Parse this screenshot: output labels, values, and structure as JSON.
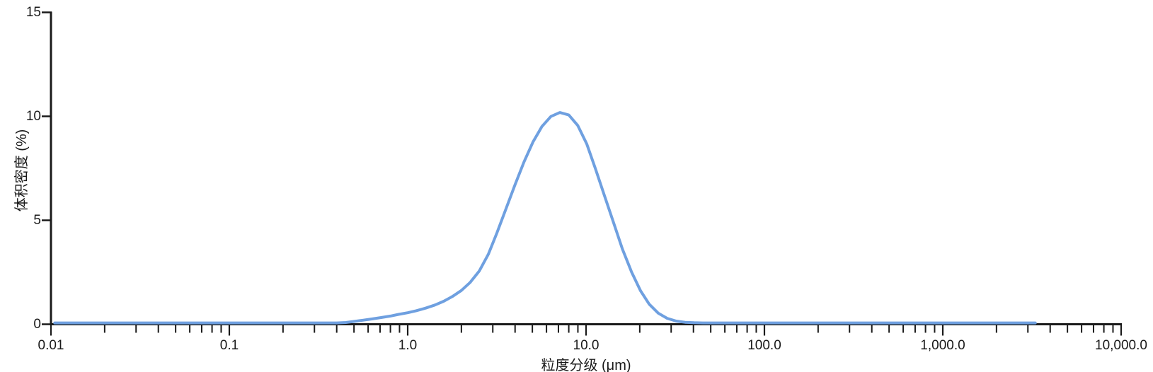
{
  "colors": {
    "axis": "#1a1a1a",
    "text": "#1a1a1a",
    "curve": "#6FA0E0",
    "background": "#ffffff"
  },
  "chart_data": {
    "type": "line",
    "title": "",
    "xlabel": "粒度分级 (μm)",
    "ylabel": "体积密度 (%)",
    "x_scale": "log",
    "x_domain": [
      0.01,
      10000
    ],
    "ylim": [
      0,
      15
    ],
    "grid": false,
    "legend": "none",
    "x_tick_values": [
      0.01,
      0.1,
      1,
      10,
      100,
      1000,
      10000
    ],
    "x_tick_labels": [
      "0.01",
      "0.1",
      "1.0",
      "10.0",
      "100.0",
      "1,000.0",
      "10,000.0"
    ],
    "y_ticks": [
      "0",
      "5",
      "10",
      "15"
    ],
    "y_tick_values": [
      0,
      5,
      10,
      15
    ],
    "peak": {
      "size_um": 7.1,
      "volume_density_pct": 10.1
    },
    "series": [
      {
        "name": "volume-density-distribution",
        "color": "#6FA0E0",
        "points": [
          [
            0.0105,
            0
          ],
          [
            0.02,
            0
          ],
          [
            0.05,
            0
          ],
          [
            0.1,
            0
          ],
          [
            0.2,
            0
          ],
          [
            0.3,
            0
          ],
          [
            0.4,
            0
          ],
          [
            0.45,
            0.02
          ],
          [
            0.5,
            0.07
          ],
          [
            0.56,
            0.13
          ],
          [
            0.63,
            0.19
          ],
          [
            0.71,
            0.26
          ],
          [
            0.8,
            0.33
          ],
          [
            0.89,
            0.41
          ],
          [
            1.0,
            0.49
          ],
          [
            1.12,
            0.59
          ],
          [
            1.26,
            0.71
          ],
          [
            1.42,
            0.86
          ],
          [
            1.59,
            1.04
          ],
          [
            1.78,
            1.27
          ],
          [
            2.0,
            1.56
          ],
          [
            2.24,
            1.95
          ],
          [
            2.52,
            2.5
          ],
          [
            2.83,
            3.3
          ],
          [
            3.17,
            4.35
          ],
          [
            3.56,
            5.5
          ],
          [
            4.0,
            6.65
          ],
          [
            4.49,
            7.75
          ],
          [
            5.04,
            8.7
          ],
          [
            5.66,
            9.45
          ],
          [
            6.35,
            9.93
          ],
          [
            7.13,
            10.12
          ],
          [
            8.0,
            10.0
          ],
          [
            8.98,
            9.5
          ],
          [
            10.1,
            8.6
          ],
          [
            11.3,
            7.4
          ],
          [
            12.7,
            6.1
          ],
          [
            14.3,
            4.8
          ],
          [
            16.0,
            3.55
          ],
          [
            18.0,
            2.45
          ],
          [
            20.2,
            1.55
          ],
          [
            22.6,
            0.9
          ],
          [
            25.4,
            0.47
          ],
          [
            28.5,
            0.22
          ],
          [
            32.0,
            0.09
          ],
          [
            35.9,
            0.03
          ],
          [
            40.3,
            0.01
          ],
          [
            45.2,
            0
          ],
          [
            100,
            0
          ],
          [
            300,
            0
          ],
          [
            1000,
            0
          ],
          [
            2000,
            0
          ],
          [
            3300,
            0
          ]
        ]
      }
    ]
  }
}
